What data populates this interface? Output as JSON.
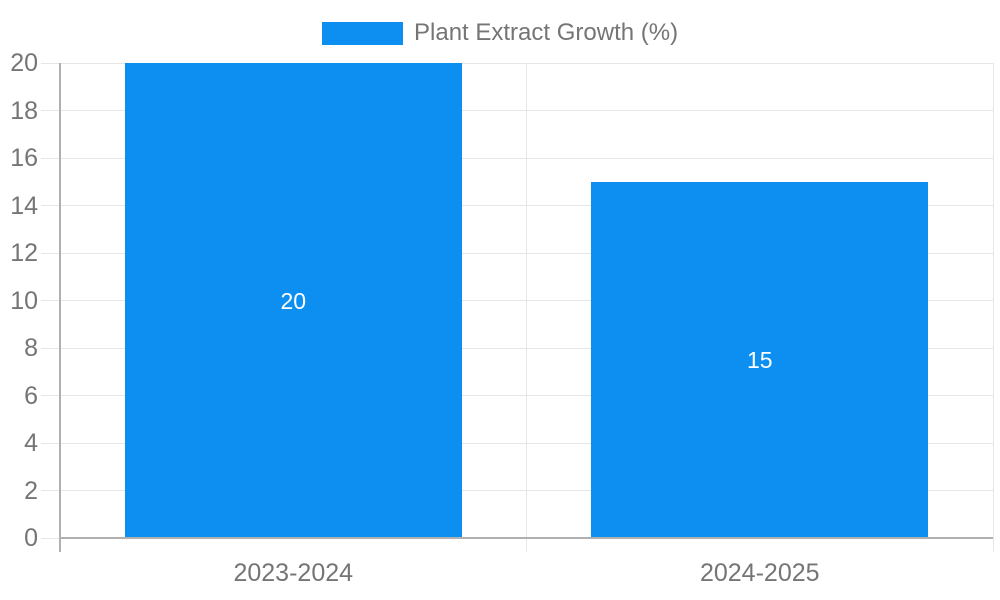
{
  "chart_data": {
    "type": "bar",
    "title": "",
    "legend": "Plant Extract Growth (%)",
    "legend_position": "top-center",
    "categories": [
      "2023-2024",
      "2024-2025"
    ],
    "values": [
      20,
      15
    ],
    "bar_labels": [
      "20",
      "15"
    ],
    "xlabel": "",
    "ylabel": "",
    "ylim": [
      0,
      20
    ],
    "yticks": [
      0,
      2,
      4,
      6,
      8,
      10,
      12,
      14,
      16,
      18,
      20
    ],
    "grid": true,
    "colors": {
      "bar": "#0d8ff2",
      "axis": "#b0b0b0",
      "gridline": "#e6e6e6",
      "text": "#757575",
      "bar_label": "#ffffff",
      "background": "#ffffff"
    }
  }
}
